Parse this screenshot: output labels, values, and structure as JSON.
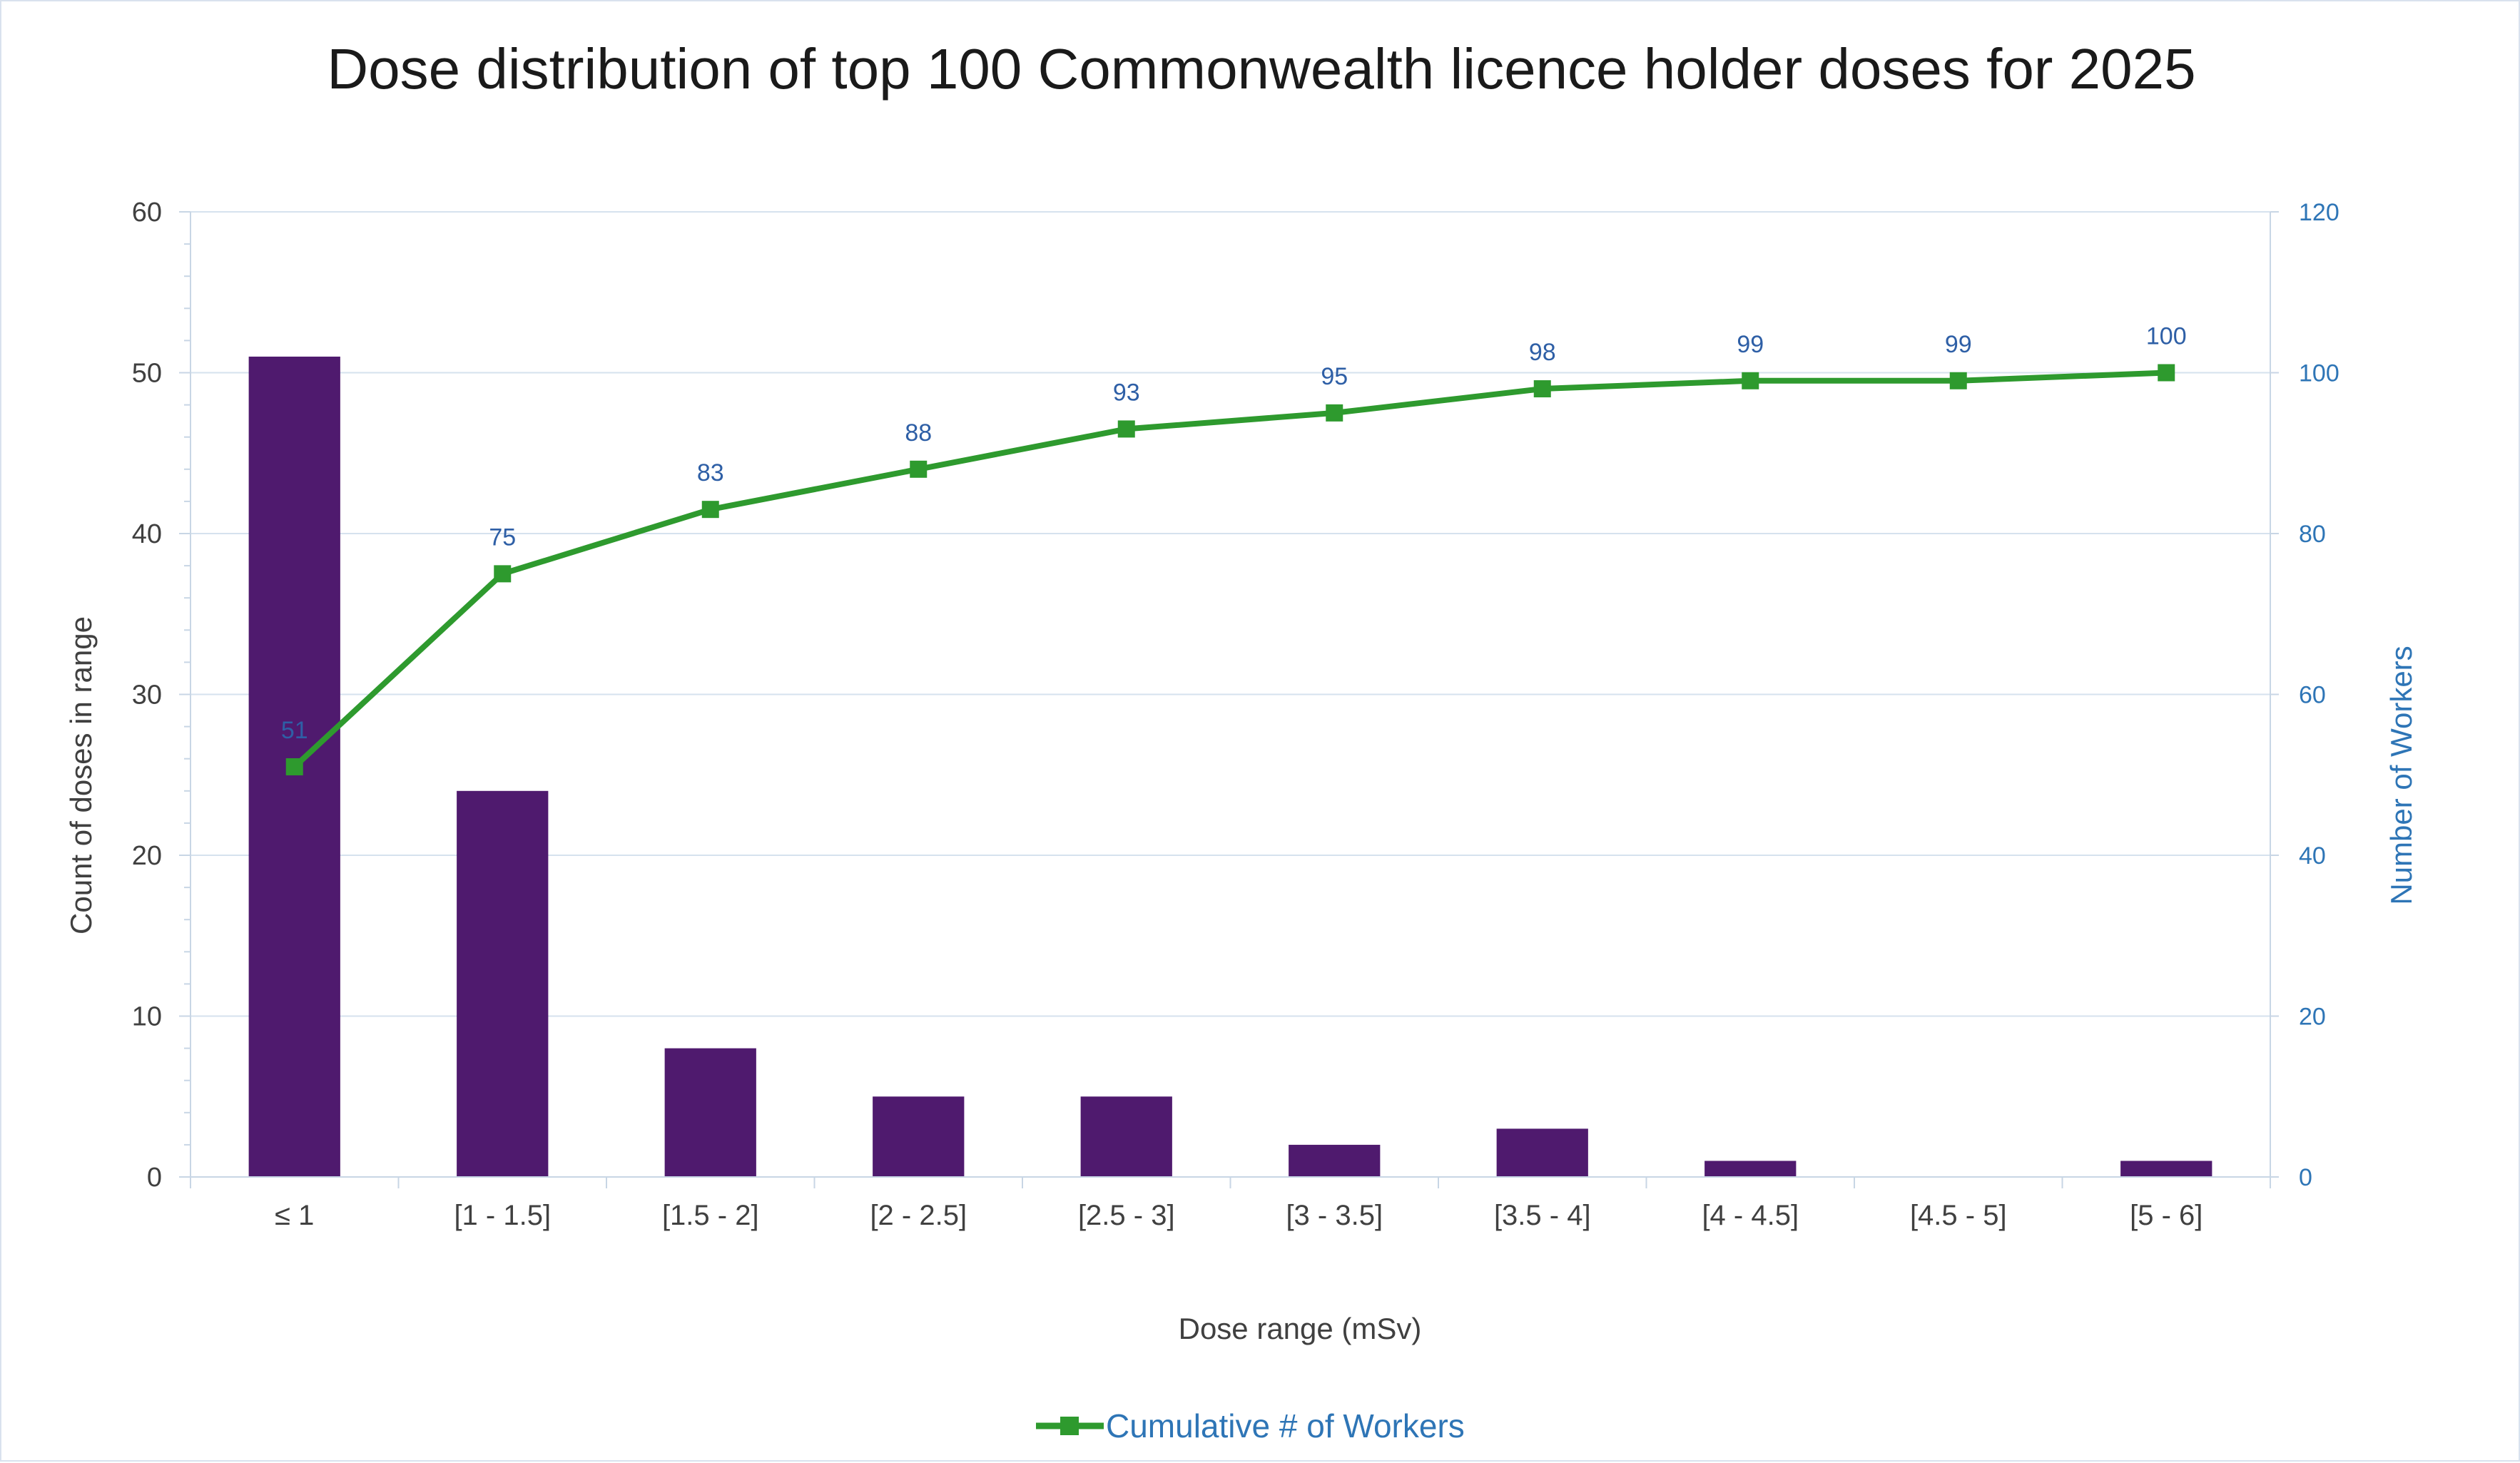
{
  "chart_data": {
    "type": "bar",
    "title": "Dose distribution of top 100 Commonwealth licence holder doses for 2025",
    "xlabel": "Dose range (mSv)",
    "ylabel": "Count of doses in range",
    "y2label": "Number of Workers",
    "categories": [
      "≤ 1",
      "[1 - 1.5]",
      "[1.5 - 2]",
      "[2 - 2.5]",
      "[2.5 - 3]",
      "[3 - 3.5]",
      "[3.5 - 4]",
      "[4 - 4.5]",
      "[4.5 - 5]",
      "[5 - 6]"
    ],
    "ylim": [
      0,
      60
    ],
    "y2lim": [
      0,
      120
    ],
    "yticks": [
      0,
      10,
      20,
      30,
      40,
      50,
      60
    ],
    "y2ticks": [
      0,
      20,
      40,
      60,
      80,
      100,
      120
    ],
    "grid": true,
    "legend_position": "bottom",
    "series": [
      {
        "kind": "bar",
        "axis": "left",
        "color": "#4f1a6e",
        "values": [
          51,
          24,
          8,
          5,
          5,
          2,
          3,
          1,
          0,
          1
        ]
      },
      {
        "name": "Cumulative # of Workers",
        "kind": "line",
        "axis": "right",
        "color": "#2e9a2e",
        "marker": "square",
        "values": [
          51,
          75,
          83,
          88,
          93,
          95,
          98,
          99,
          99,
          100
        ],
        "labels": [
          "51",
          "75",
          "83",
          "88",
          "93",
          "95",
          "98",
          "99",
          "99",
          "100"
        ]
      }
    ]
  }
}
